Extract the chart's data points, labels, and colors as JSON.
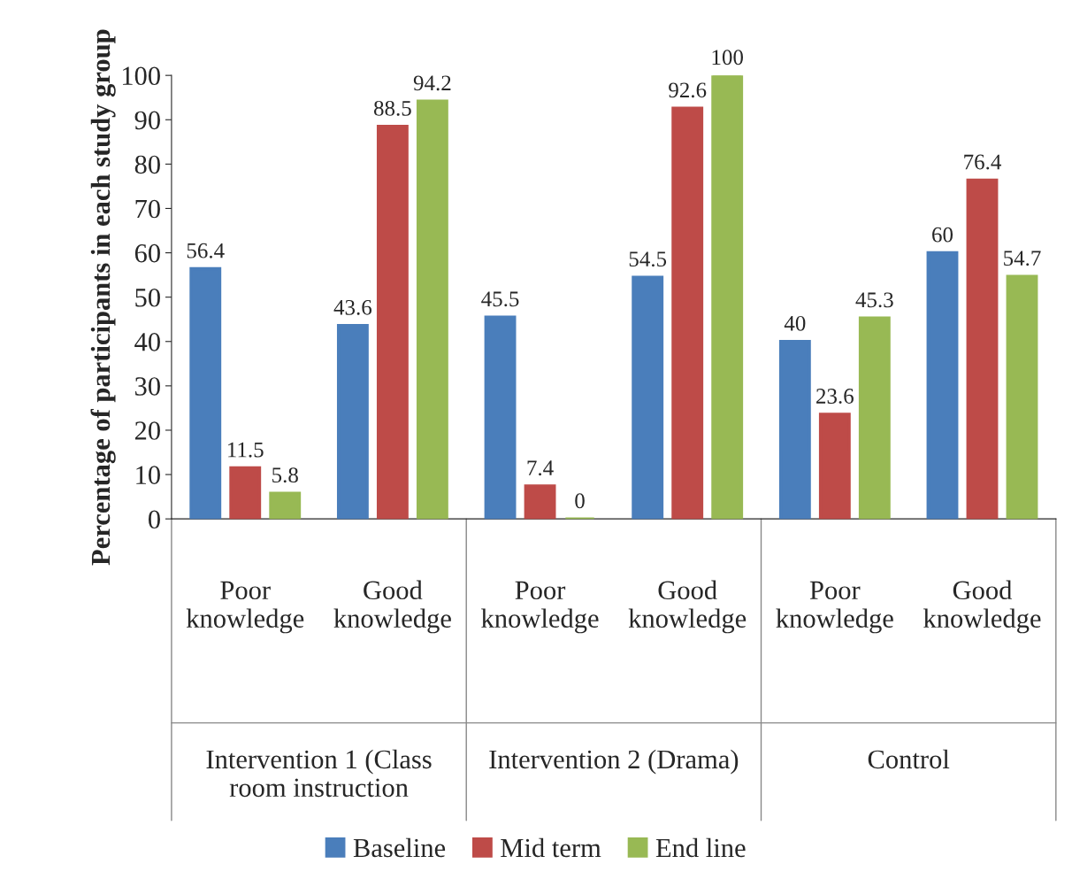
{
  "chart_data": {
    "type": "bar",
    "ylabel": "Percentage of participants in each study group",
    "categories": [
      "Poor knowledge",
      "Good knowledge",
      "Poor knowledge",
      "Good knowledge",
      "Poor knowledge",
      "Good knowledge"
    ],
    "series": [
      {
        "name": "Baseline",
        "color": "#4a7ebb",
        "values": [
          56.4,
          43.6,
          45.5,
          54.5,
          40,
          60
        ]
      },
      {
        "name": "Mid term",
        "color": "#be4b48",
        "values": [
          11.5,
          88.5,
          7.4,
          92.6,
          23.6,
          76.4
        ]
      },
      {
        "name": "End line",
        "color": "#98b954",
        "values": [
          5.8,
          94.2,
          0,
          100,
          45.3,
          54.7
        ]
      }
    ],
    "annotations": [
      "Intervention 1 (Class room instruction",
      "Intervention 2 (Drama)",
      "Control"
    ],
    "ylim": [
      0,
      100
    ],
    "yticks": [
      0,
      10,
      20,
      30,
      40,
      50,
      60,
      70,
      80,
      90,
      100
    ],
    "data_labels": true,
    "grid": false,
    "legend": "bottom"
  }
}
